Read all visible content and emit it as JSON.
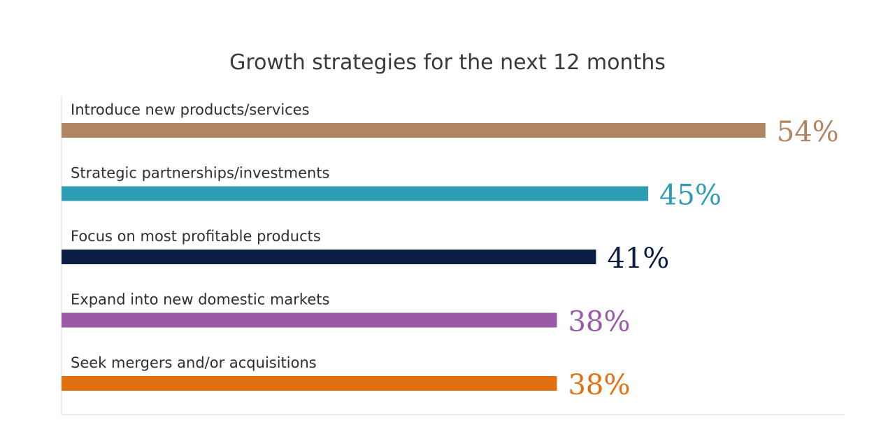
{
  "chart_data": {
    "type": "bar",
    "orientation": "horizontal",
    "title": "Growth strategies for the next 12 months",
    "categories": [
      "Introduce new products/services",
      "Strategic partnerships/investments",
      "Focus on most profitable products",
      "Expand into new domestic markets",
      "Seek mergers and/or acquisitions"
    ],
    "values": [
      54,
      45,
      41,
      38,
      38
    ],
    "value_labels": [
      "54%",
      "45%",
      "41%",
      "38%",
      "38%"
    ],
    "colors": [
      "#b08562",
      "#2e9cb3",
      "#0b1d43",
      "#9a5aa8",
      "#e07010"
    ],
    "xlim": [
      0,
      59
    ],
    "grid": false,
    "legend": "none",
    "axis_color": "#d9d9d9"
  }
}
